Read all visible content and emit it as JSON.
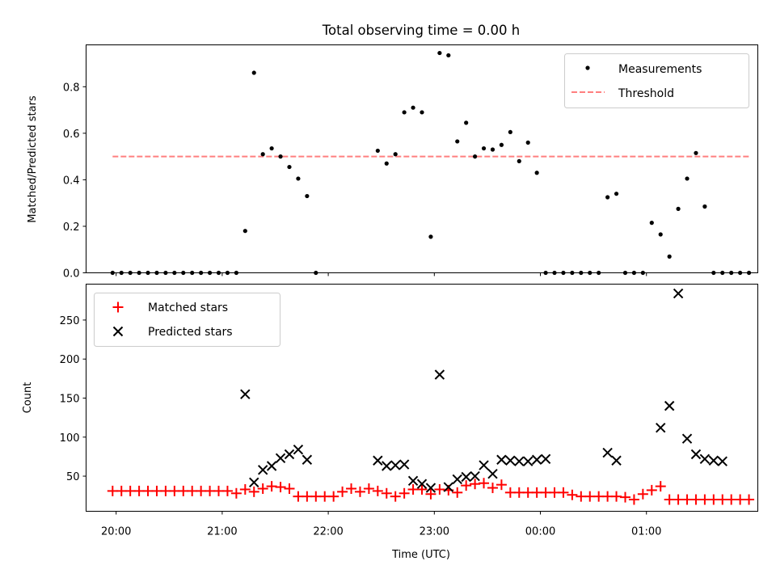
{
  "figure": {
    "title": "Total observing time = 0.00 h"
  },
  "chart_data": [
    {
      "type": "scatter",
      "ylabel": "Matched/Predicted stars",
      "xlabel": "",
      "xlim": [
        "19:43",
        "26:03"
      ],
      "ylim": [
        0,
        0.98
      ],
      "yticks": [
        0.0,
        0.2,
        0.4,
        0.6,
        0.8
      ],
      "ytick_labels": [
        "0.0",
        "0.2",
        "0.4",
        "0.6",
        "0.8"
      ],
      "grid": false,
      "legend_position": "upper right",
      "series": [
        {
          "name": "Measurements",
          "kind": "scatter",
          "color": "#000000",
          "x": [
            "19:58",
            "20:03",
            "20:08",
            "20:13",
            "20:18",
            "20:23",
            "20:28",
            "20:33",
            "20:38",
            "20:43",
            "20:48",
            "20:53",
            "20:58",
            "21:03",
            "21:08",
            "21:13",
            "21:18",
            "21:23",
            "21:28",
            "21:33",
            "21:38",
            "21:43",
            "21:48",
            "21:53",
            "22:28",
            "22:33",
            "22:38",
            "22:43",
            "22:48",
            "22:53",
            "22:58",
            "23:03",
            "23:08",
            "23:13",
            "23:18",
            "23:23",
            "23:28",
            "23:33",
            "23:38",
            "23:43",
            "23:48",
            "23:53",
            "23:58",
            "24:03",
            "24:08",
            "24:13",
            "24:18",
            "24:23",
            "24:28",
            "24:33",
            "24:38",
            "24:43",
            "24:48",
            "24:53",
            "24:58",
            "25:03",
            "25:08",
            "25:13",
            "25:18",
            "25:23",
            "25:28",
            "25:33",
            "25:38",
            "25:43",
            "25:48",
            "25:53",
            "25:58"
          ],
          "y": [
            0,
            0,
            0,
            0,
            0,
            0,
            0,
            0,
            0,
            0,
            0,
            0,
            0,
            0,
            0,
            0.18,
            0.86,
            0.51,
            0.535,
            0.5,
            0.455,
            0.405,
            0.33,
            0,
            0.525,
            0.47,
            0.51,
            0.69,
            0.71,
            0.69,
            0.155,
            0.945,
            0.935,
            0.565,
            0.645,
            0.5,
            0.535,
            0.53,
            0.55,
            0.605,
            0.48,
            0.56,
            0.43,
            0,
            0,
            0,
            0,
            0,
            0,
            0,
            0.325,
            0.34,
            0,
            0,
            0,
            0.215,
            0.165,
            0.07,
            0.275,
            0.405,
            0.515,
            0.285,
            0,
            0,
            0,
            0,
            0
          ]
        },
        {
          "name": "Threshold",
          "kind": "line",
          "style": "dashed",
          "color": "#ff7f7f",
          "x": [
            "19:58",
            "25:58"
          ],
          "y": [
            0.5,
            0.5
          ]
        }
      ]
    },
    {
      "type": "scatter",
      "ylabel": "Count",
      "xlabel": "Time (UTC)",
      "xlim": [
        "19:43",
        "26:03"
      ],
      "ylim": [
        5,
        296
      ],
      "yticks": [
        50,
        100,
        150,
        200,
        250
      ],
      "ytick_labels": [
        "50",
        "100",
        "150",
        "200",
        "250"
      ],
      "xticks": [
        "20:00",
        "21:00",
        "22:00",
        "23:00",
        "24:00",
        "25:00"
      ],
      "xtick_labels": [
        "20:00",
        "21:00",
        "22:00",
        "23:00",
        "00:00",
        "01:00"
      ],
      "grid": false,
      "legend_position": "upper left",
      "series": [
        {
          "name": "Matched stars",
          "marker": "+",
          "color": "#ff0000",
          "x": [
            "19:58",
            "20:03",
            "20:08",
            "20:13",
            "20:18",
            "20:23",
            "20:28",
            "20:33",
            "20:38",
            "20:43",
            "20:48",
            "20:53",
            "20:58",
            "21:03",
            "21:08",
            "21:13",
            "21:18",
            "21:23",
            "21:28",
            "21:33",
            "21:38",
            "21:43",
            "21:48",
            "21:53",
            "21:58",
            "22:03",
            "22:08",
            "22:13",
            "22:18",
            "22:23",
            "22:28",
            "22:33",
            "22:38",
            "22:43",
            "22:48",
            "22:53",
            "22:58",
            "23:03",
            "23:08",
            "23:13",
            "23:18",
            "23:23",
            "23:28",
            "23:33",
            "23:38",
            "23:43",
            "23:48",
            "23:53",
            "23:58",
            "24:03",
            "24:08",
            "24:13",
            "24:18",
            "24:23",
            "24:28",
            "24:33",
            "24:38",
            "24:43",
            "24:48",
            "24:53",
            "24:58",
            "25:03",
            "25:08",
            "25:13",
            "25:18",
            "25:23",
            "25:28",
            "25:33",
            "25:38",
            "25:43",
            "25:48",
            "25:53",
            "25:58"
          ],
          "y": [
            31,
            31,
            31,
            31,
            31,
            31,
            31,
            31,
            31,
            31,
            31,
            31,
            31,
            31,
            28,
            33,
            30,
            34,
            37,
            36,
            34,
            24,
            24,
            24,
            24,
            24,
            30,
            34,
            30,
            34,
            31,
            28,
            24,
            28,
            33,
            33,
            27,
            33,
            32,
            29,
            38,
            40,
            41,
            35,
            39,
            29,
            29,
            29,
            29,
            29,
            29,
            29,
            26,
            24,
            24,
            24,
            24,
            24,
            23,
            20,
            27,
            32,
            37,
            20,
            20,
            20,
            20,
            20,
            20,
            20,
            20,
            20,
            20
          ]
        },
        {
          "name": "Predicted stars",
          "marker": "x",
          "color": "#000000",
          "x": [
            "21:13",
            "21:18",
            "21:23",
            "21:28",
            "21:33",
            "21:38",
            "21:43",
            "21:48",
            "22:28",
            "22:33",
            "22:38",
            "22:43",
            "22:48",
            "22:53",
            "22:58",
            "23:03",
            "23:08",
            "23:13",
            "23:18",
            "23:23",
            "23:28",
            "23:33",
            "23:38",
            "23:43",
            "23:48",
            "23:53",
            "23:58",
            "24:03",
            "24:38",
            "24:43",
            "25:08",
            "25:13",
            "25:18",
            "25:23",
            "25:28",
            "25:33",
            "25:38",
            "25:43"
          ],
          "y": [
            155,
            42,
            58,
            63,
            73,
            78,
            84,
            71,
            70,
            63,
            64,
            65,
            44,
            40,
            35,
            180,
            36,
            46,
            49,
            50,
            64,
            53,
            71,
            70,
            69,
            69,
            71,
            72,
            80,
            70,
            112,
            140,
            284,
            98,
            78,
            72,
            70,
            69
          ]
        }
      ]
    }
  ]
}
